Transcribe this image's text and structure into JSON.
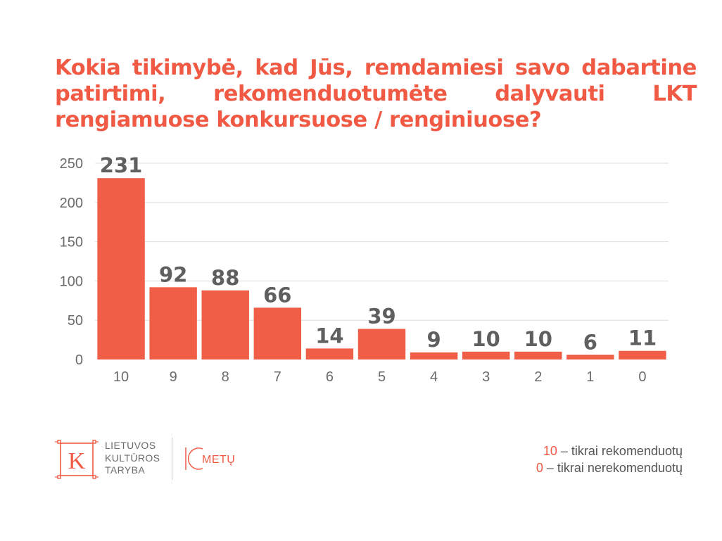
{
  "colors": {
    "accent": "#f05a44",
    "bar": "#f05e47",
    "axis_text": "#6b6b6b",
    "data_label": "#5f5f5f",
    "grid": "#dddddd"
  },
  "chart_data": {
    "type": "bar",
    "title": "Kokia tikimybė, kad Jūs, remdamiesi savo dabartine patirtimi, rekomenduotumėte dalyvauti LKT rengiamuose konkursuose / renginiuose?",
    "xlabel": "",
    "ylabel": "",
    "categories": [
      "10",
      "9",
      "8",
      "7",
      "6",
      "5",
      "4",
      "3",
      "2",
      "1",
      "0"
    ],
    "values": [
      231,
      92,
      88,
      66,
      14,
      39,
      9,
      10,
      10,
      6,
      11
    ],
    "ylim": [
      0,
      250
    ],
    "yticks": [
      "0",
      "50",
      "100",
      "150",
      "200",
      "250"
    ],
    "grid": true,
    "legend": "none"
  },
  "scale_note": {
    "line1_number": "10",
    "line1_text": " – tikrai rekomenduotų",
    "line2_number": "0",
    "line2_text": " – tikrai nerekomenduotų"
  },
  "logo": {
    "icon": "k-letter-icon",
    "letter": "K",
    "line1": "LIETUVOS",
    "line2": "KULTŪROS",
    "line3": "TARYBA",
    "anniversary": "METŲ"
  }
}
